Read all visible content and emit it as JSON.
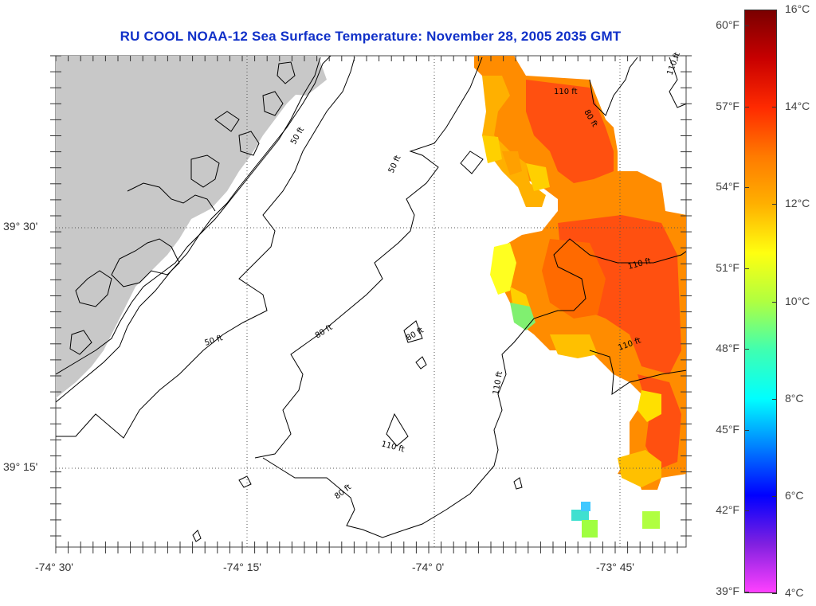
{
  "title": "RU COOL  NOAA-12  Sea Surface Temperature:  November 28, 2005 2035 GMT",
  "x_ticks": [
    "-74° 30'",
    "-74° 15'",
    "-74° 0'",
    "-73° 45'"
  ],
  "y_ticks": [
    "39° 30'",
    "39° 15'"
  ],
  "contour_labels": [
    "50 ft",
    "50 ft",
    "50 ft",
    "80 ft",
    "80 ft",
    "80 ft",
    "80 ft",
    "110 ft",
    "110 ft",
    "110 ft",
    "110 ft",
    "110 ft",
    "110 ft"
  ],
  "colorbar": {
    "fahrenheit": [
      "60°F",
      "57°F",
      "54°F",
      "51°F",
      "48°F",
      "45°F",
      "42°F",
      "39°F"
    ],
    "celsius": [
      "16°C",
      "14°C",
      "12°C",
      "10°C",
      "8°C",
      "6°C",
      "4°C"
    ],
    "colors": [
      "#7a0000",
      "#c80000",
      "#ff2a00",
      "#ff7a00",
      "#ffb000",
      "#ffff10",
      "#b0ff40",
      "#40ffb0",
      "#00ffff",
      "#0080ff",
      "#0000ff",
      "#8020e0",
      "#ff40ff"
    ]
  },
  "land_color": "#c8c8c8",
  "title_color": "#1030c8"
}
